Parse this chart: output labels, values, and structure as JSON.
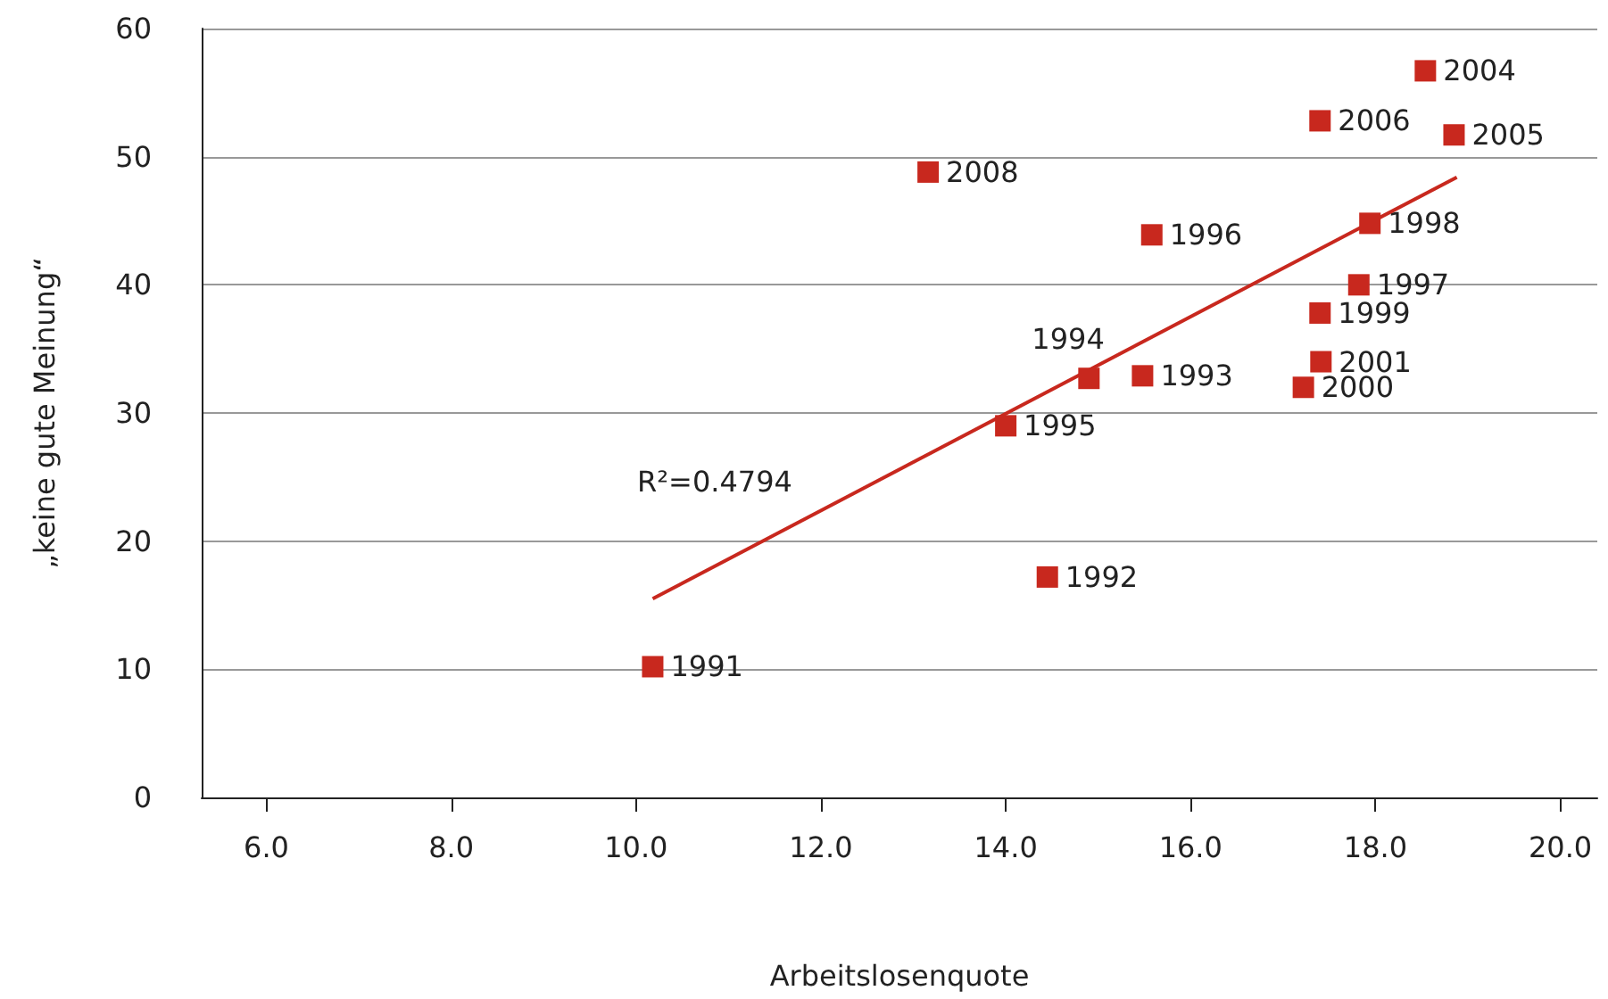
{
  "chart_data": {
    "type": "scatter",
    "xlabel": "Arbeitslosenquote",
    "ylabel": "„keine gute Meinung“",
    "annotations": [
      "R²=0.4794",
      {
        "text": "1991",
        "x": 10.18,
        "y": 10.2
      },
      {
        "text": "1992",
        "x": 14.45,
        "y": 17.2
      },
      {
        "text": "1993",
        "x": 15.48,
        "y": 32.9
      },
      {
        "text": "1994",
        "x": 14.9,
        "y": 32.7
      },
      {
        "text": "1995",
        "x": 14.0,
        "y": 29.0
      },
      {
        "text": "1996",
        "x": 15.58,
        "y": 43.9
      },
      {
        "text": "1997",
        "x": 17.82,
        "y": 40.0
      },
      {
        "text": "1998",
        "x": 17.94,
        "y": 44.8
      },
      {
        "text": "1999",
        "x": 17.4,
        "y": 37.8
      },
      {
        "text": "2000",
        "x": 17.22,
        "y": 32.0
      },
      {
        "text": "2001",
        "x": 17.41,
        "y": 34.0
      },
      {
        "text": "2004",
        "x": 18.54,
        "y": 56.7
      },
      {
        "text": "2005",
        "x": 18.85,
        "y": 51.7
      },
      {
        "text": "2006",
        "x": 17.4,
        "y": 52.8
      },
      {
        "text": "2008",
        "x": 13.16,
        "y": 48.8
      }
    ],
    "xlim": [
      5.3,
      20.4
    ],
    "ylim": [
      0,
      60
    ],
    "xticks": [
      {
        "value": 6,
        "label": "6.0"
      },
      {
        "value": 8,
        "label": "8.0"
      },
      {
        "value": 10,
        "label": "10.0"
      },
      {
        "value": 12,
        "label": "12.0"
      },
      {
        "value": 14,
        "label": "14.0"
      },
      {
        "value": 16,
        "label": "16.0"
      },
      {
        "value": 18,
        "label": "18.0"
      },
      {
        "value": 20,
        "label": "20.0"
      }
    ],
    "yticks": [
      0,
      10,
      20,
      30,
      40,
      50,
      60
    ],
    "grid": "y",
    "marker": "square",
    "series": [
      {
        "color": "#c8281e",
        "x": [
          10.18,
          14.45,
          15.48,
          14.9,
          14.0,
          15.58,
          17.82,
          17.94,
          17.4,
          17.22,
          17.41,
          18.54,
          18.85,
          17.4,
          13.16
        ],
        "values": [
          10.2,
          17.2,
          32.9,
          32.7,
          29.0,
          43.9,
          40.0,
          44.8,
          37.8,
          32.0,
          34.0,
          56.7,
          51.7,
          52.8,
          48.8
        ]
      },
      {
        "type": "line",
        "color": "#c8281e",
        "x": [
          10.18,
          18.88
        ],
        "values": [
          15.5,
          48.4
        ],
        "marker": "none"
      }
    ]
  }
}
